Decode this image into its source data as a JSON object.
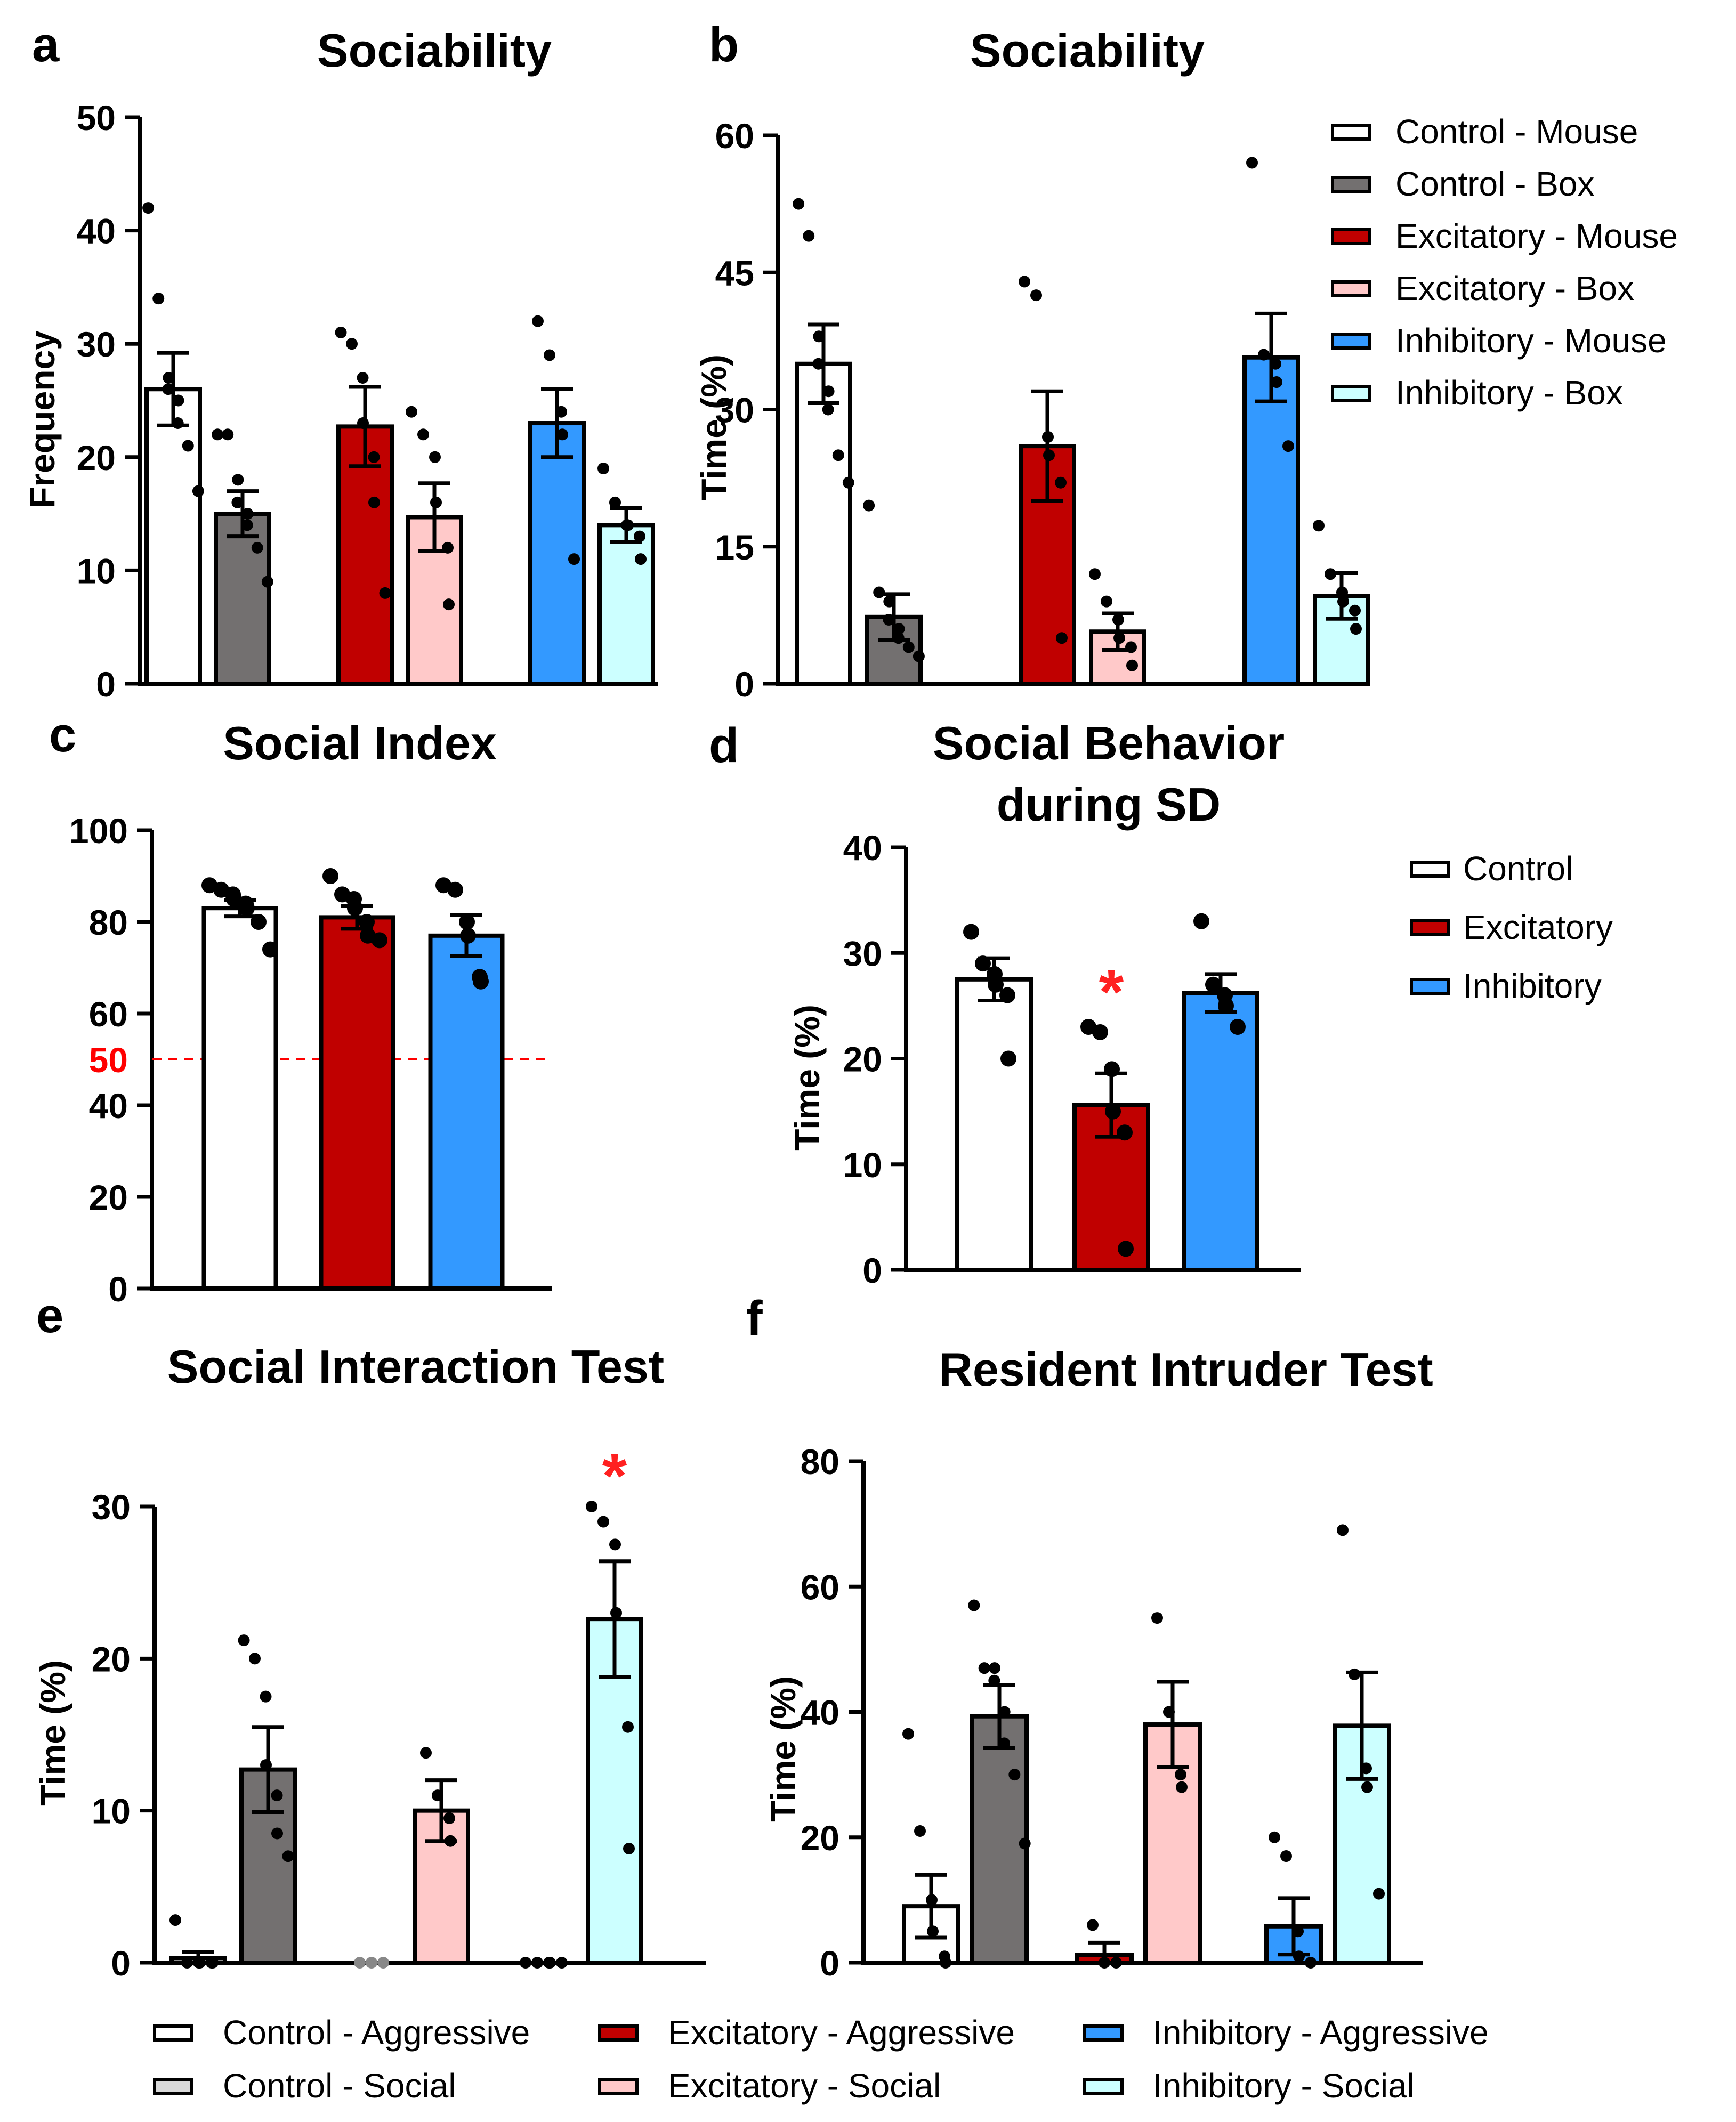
{
  "figure_title": "Sociability, social index, social behavior, social interaction and resident intruder panels",
  "colors": {
    "control": "#ffffff",
    "control_box": "#737070",
    "excitatory": "#c00000",
    "excitatory_box": "#ffc9c9",
    "inhibitory": "#3399ff",
    "inhibitory_box": "#ccffff",
    "control_social": "#d9d9d9",
    "axis": "#000000",
    "significance": "#ff2020",
    "threshold_line": "#ff0000"
  },
  "chart_data": [
    {
      "panel_letter": "a",
      "type": "bar",
      "title": "Sociability",
      "ylabel": "Frequency",
      "ylim": [
        0,
        50
      ],
      "yticks": [
        "0",
        "10",
        "20",
        "30",
        "40",
        "50"
      ],
      "series": [
        {
          "name": "Control - Mouse",
          "color": "#ffffff",
          "value": 26,
          "sem": 3.2,
          "points": [
            42,
            34,
            27,
            26,
            25,
            23,
            21,
            17
          ]
        },
        {
          "name": "Control - Box",
          "color": "#737070",
          "value": 15,
          "sem": 2,
          "points": [
            22,
            22,
            18,
            16,
            15,
            14,
            12,
            9
          ]
        },
        {
          "name": "Excitatory - Mouse",
          "color": "#c00000",
          "value": 22.7,
          "sem": 3.5,
          "points": [
            31,
            30,
            27,
            23,
            20,
            16,
            8
          ]
        },
        {
          "name": "Excitatory - Box",
          "color": "#ffc9c9",
          "value": 14.7,
          "sem": 3,
          "points": [
            24,
            22,
            20,
            16,
            12,
            7
          ]
        },
        {
          "name": "Inhibitory - Mouse",
          "color": "#3399ff",
          "value": 23,
          "sem": 3,
          "points": [
            32,
            29,
            24,
            22,
            11
          ]
        },
        {
          "name": "Inhibitory - Box",
          "color": "#ccffff",
          "value": 14,
          "sem": 1.5,
          "points": [
            19,
            16,
            14,
            14,
            13,
            11
          ]
        }
      ]
    },
    {
      "panel_letter": "b",
      "type": "bar",
      "title": "Sociability",
      "ylabel": "Time (%)",
      "ylim": [
        0,
        60
      ],
      "yticks": [
        "0",
        "15",
        "30",
        "45",
        "60"
      ],
      "series": [
        {
          "name": "Control - Mouse",
          "color": "#ffffff",
          "value": 35,
          "sem": 4.3,
          "points": [
            52.5,
            49,
            38,
            35,
            32,
            30,
            25,
            22
          ]
        },
        {
          "name": "Control - Box",
          "color": "#737070",
          "value": 7.3,
          "sem": 2.5,
          "points": [
            19.5,
            10,
            9,
            7,
            6,
            5,
            4,
            3
          ]
        },
        {
          "name": "Excitatory - Mouse",
          "color": "#c00000",
          "value": 26,
          "sem": 6,
          "points": [
            44,
            42.5,
            27,
            25,
            22,
            5
          ]
        },
        {
          "name": "Excitatory - Box",
          "color": "#ffc9c9",
          "value": 5.7,
          "sem": 2,
          "points": [
            12,
            9,
            7,
            5,
            4,
            2
          ]
        },
        {
          "name": "Inhibitory - Mouse",
          "color": "#3399ff",
          "value": 35.7,
          "sem": 4.8,
          "points": [
            57,
            36,
            35,
            33,
            26
          ]
        },
        {
          "name": "Inhibitory - Box",
          "color": "#ccffff",
          "value": 9.6,
          "sem": 2.5,
          "points": [
            17.3,
            12,
            10,
            9,
            8,
            6
          ]
        }
      ],
      "legend": [
        "Control - Mouse",
        "Control - Box",
        "Excitatory - Mouse",
        "Excitatory  - Box",
        "Inhibitory - Mouse",
        "Inhibitory  - Box"
      ]
    },
    {
      "panel_letter": "c",
      "type": "bar",
      "title": "Social Index",
      "ylabel": "",
      "ylim": [
        0,
        100
      ],
      "yticks": [
        "0",
        "20",
        "40",
        "60",
        "80",
        "100"
      ],
      "threshold": {
        "value": 50,
        "label": "50"
      },
      "series": [
        {
          "name": "Control",
          "color": "#ffffff",
          "value": 83,
          "sem": 1.8,
          "points": [
            88,
            87,
            86,
            85,
            84,
            83,
            80,
            74
          ]
        },
        {
          "name": "Excitatory",
          "color": "#c00000",
          "value": 81,
          "sem": 2.5,
          "points": [
            90,
            86,
            85,
            83,
            80,
            77,
            76
          ]
        },
        {
          "name": "Inhibitory",
          "color": "#3399ff",
          "value": 77,
          "sem": 4.5,
          "points": [
            88,
            87,
            80,
            77,
            68,
            67
          ]
        }
      ]
    },
    {
      "panel_letter": "d",
      "type": "bar",
      "title": "Social Behavior",
      "title_line2": "during SD",
      "ylabel": "Time (%)",
      "ylim": [
        0,
        40
      ],
      "yticks": [
        "0",
        "10",
        "20",
        "30",
        "40"
      ],
      "significance": {
        "mark": "*",
        "category": "Excitatory",
        "y": 27
      },
      "series": [
        {
          "name": "Control",
          "color": "#ffffff",
          "value": 27.5,
          "sem": 2,
          "points": [
            32,
            29,
            28,
            27,
            26,
            20
          ]
        },
        {
          "name": "Excitatory",
          "color": "#c00000",
          "value": 15.6,
          "sem": 3,
          "points": [
            23,
            22.5,
            19,
            15,
            13,
            2
          ]
        },
        {
          "name": "Inhibitory",
          "color": "#3399ff",
          "value": 26.2,
          "sem": 1.8,
          "points": [
            33,
            27,
            26,
            25,
            23
          ]
        }
      ],
      "legend": [
        "Control",
        "Excitatory",
        "Inhibitory"
      ]
    },
    {
      "panel_letter": "e",
      "type": "bar",
      "title": "Social Interaction Test",
      "ylabel": "Time (%)",
      "ylim": [
        0,
        30
      ],
      "yticks": [
        "0",
        "10",
        "20",
        "30"
      ],
      "significance": {
        "mark": "*",
        "category": "Inhibitory - Social",
        "y": 32.5
      },
      "series": [
        {
          "name": "Control - Aggressive",
          "color": "#ffffff",
          "value": 0.3,
          "sem": 0.4,
          "points": [
            2.8,
            0,
            0,
            0,
            0,
            0
          ]
        },
        {
          "name": "Control - Social",
          "color": "#737070",
          "value": 12.7,
          "sem": 2.8,
          "points": [
            21.2,
            20,
            17.5,
            13,
            11,
            8.5,
            7
          ]
        },
        {
          "name": "Excitatory - Aggressive",
          "color": "#c00000",
          "value": 0,
          "sem": 0,
          "points": [
            0,
            0,
            0
          ]
        },
        {
          "name": "Excitatory - Social",
          "color": "#ffc9c9",
          "value": 10,
          "sem": 2,
          "points": [
            13.8,
            11,
            9.5,
            8
          ]
        },
        {
          "name": "Inhibitory - Aggressive",
          "color": "#3399ff",
          "value": 0,
          "sem": 0,
          "points": [
            0,
            0,
            0,
            0,
            0
          ]
        },
        {
          "name": "Inhibitory - Social",
          "color": "#ccffff",
          "value": 22.6,
          "sem": 3.8,
          "points": [
            30,
            29,
            27.5,
            23,
            15.5,
            7.5
          ]
        }
      ]
    },
    {
      "panel_letter": "f",
      "type": "bar",
      "title": "Resident Intruder Test",
      "ylabel": "Time (%)",
      "ylim": [
        0,
        80
      ],
      "yticks": [
        "0",
        "20",
        "40",
        "60",
        "80"
      ],
      "series": [
        {
          "name": "Control - Aggressive",
          "color": "#ffffff",
          "value": 9,
          "sem": 5,
          "points": [
            36.5,
            21,
            10,
            5,
            1,
            0
          ]
        },
        {
          "name": "Control - Social",
          "color": "#737070",
          "value": 39.3,
          "sem": 5,
          "points": [
            57,
            47,
            47,
            45,
            40,
            35,
            30,
            19
          ]
        },
        {
          "name": "Excitatory - Aggressive",
          "color": "#c00000",
          "value": 1.2,
          "sem": 2,
          "points": [
            6,
            0,
            0
          ]
        },
        {
          "name": "Excitatory - Social",
          "color": "#ffc9c9",
          "value": 38,
          "sem": 6.8,
          "points": [
            55,
            40,
            30,
            28
          ]
        },
        {
          "name": "Inhibitory - Aggressive",
          "color": "#3399ff",
          "value": 5.8,
          "sem": 4.5,
          "points": [
            20,
            17,
            5,
            1,
            0
          ]
        },
        {
          "name": "Inhibitory - Social",
          "color": "#ccffff",
          "value": 37.8,
          "sem": 8.5,
          "points": [
            69,
            46,
            31,
            28,
            11
          ]
        }
      ]
    }
  ],
  "bottom_legend": [
    {
      "label": "Control - Aggressive",
      "color": "#ffffff"
    },
    {
      "label": "Excitatory - Aggressive",
      "color": "#c00000"
    },
    {
      "label": "Inhibitory - Aggressive",
      "color": "#3399ff"
    },
    {
      "label": "Control - Social",
      "color": "#d9d9d9"
    },
    {
      "label": "Excitatory  - Social",
      "color": "#ffc9c9"
    },
    {
      "label": "Inhibitory  - Social",
      "color": "#ccffff"
    }
  ]
}
